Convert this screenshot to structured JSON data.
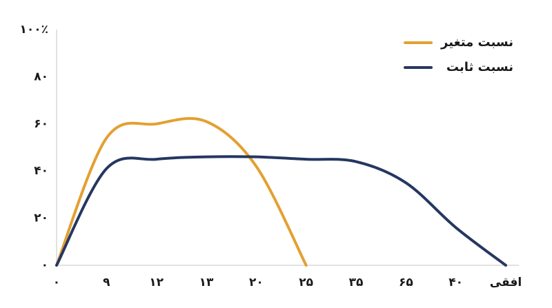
{
  "chart_data": {
    "type": "line",
    "categories": [
      "۰",
      "۹",
      "۱۲",
      "۱۳",
      "۲۰",
      "۲۵",
      "۳۵",
      "۶۵",
      "۴۰",
      "افقی"
    ],
    "series": [
      {
        "name": "نسبت متغیر",
        "color": "#e3a031",
        "values": [
          0,
          54,
          60,
          61,
          42,
          0,
          null,
          null,
          null,
          null
        ]
      },
      {
        "name": "نسبت ثابت",
        "color": "#253761",
        "values": [
          0,
          41,
          45,
          46,
          46,
          45,
          44,
          35,
          16,
          0
        ]
      }
    ],
    "ylim": [
      0,
      100
    ],
    "yticks": [
      {
        "value": 0,
        "label": "۰"
      },
      {
        "value": 20,
        "label": "۲۰"
      },
      {
        "value": 40,
        "label": "۴۰"
      },
      {
        "value": 60,
        "label": "۶۰"
      },
      {
        "value": 80,
        "label": "۸۰"
      },
      {
        "value": 100,
        "label": "۱۰۰٪"
      }
    ],
    "grid": false,
    "legend": "top-right"
  }
}
